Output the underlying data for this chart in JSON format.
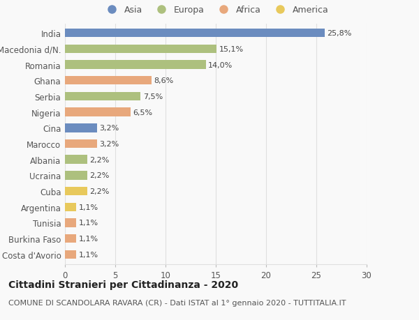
{
  "categories": [
    "India",
    "Macedonia d/N.",
    "Romania",
    "Ghana",
    "Serbia",
    "Nigeria",
    "Cina",
    "Marocco",
    "Albania",
    "Ucraina",
    "Cuba",
    "Argentina",
    "Tunisia",
    "Burkina Faso",
    "Costa d'Avorio"
  ],
  "values": [
    25.8,
    15.1,
    14.0,
    8.6,
    7.5,
    6.5,
    3.2,
    3.2,
    2.2,
    2.2,
    2.2,
    1.1,
    1.1,
    1.1,
    1.1
  ],
  "labels": [
    "25,8%",
    "15,1%",
    "14,0%",
    "8,6%",
    "7,5%",
    "6,5%",
    "3,2%",
    "3,2%",
    "2,2%",
    "2,2%",
    "2,2%",
    "1,1%",
    "1,1%",
    "1,1%",
    "1,1%"
  ],
  "continent": [
    "Asia",
    "Europa",
    "Europa",
    "Africa",
    "Europa",
    "Africa",
    "Asia",
    "Africa",
    "Europa",
    "Europa",
    "America",
    "America",
    "Africa",
    "Africa",
    "Africa"
  ],
  "colors": {
    "Asia": "#6b8cbf",
    "Europa": "#adc07e",
    "Africa": "#e8a87c",
    "America": "#e8c95c"
  },
  "legend_order": [
    "Asia",
    "Europa",
    "Africa",
    "America"
  ],
  "title": "Cittadini Stranieri per Cittadinanza - 2020",
  "subtitle": "COMUNE DI SCANDOLARA RAVARA (CR) - Dati ISTAT al 1° gennaio 2020 - TUTTITALIA.IT",
  "xlim": [
    0,
    30
  ],
  "xticks": [
    0,
    5,
    10,
    15,
    20,
    25,
    30
  ],
  "background_color": "#f9f9f9",
  "grid_color": "#e0e0e0",
  "bar_height": 0.55,
  "title_fontsize": 10,
  "subtitle_fontsize": 8,
  "tick_fontsize": 8.5,
  "label_fontsize": 8,
  "legend_fontsize": 9
}
